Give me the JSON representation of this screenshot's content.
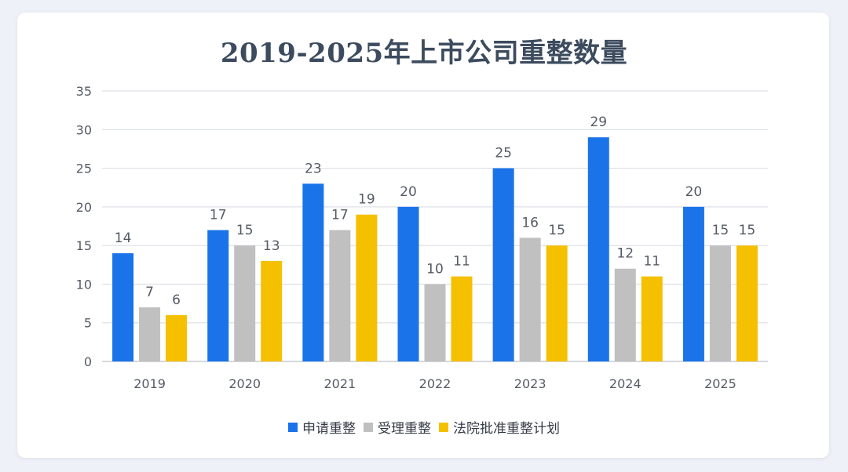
{
  "chart_data": {
    "type": "bar",
    "title": "2019-2025年上市公司重整数量",
    "categories": [
      "2019",
      "2020",
      "2021",
      "2022",
      "2023",
      "2024",
      "2025"
    ],
    "series": [
      {
        "name": "申请重整",
        "color": "#1a73e8",
        "values": [
          14,
          17,
          23,
          20,
          25,
          29,
          20
        ]
      },
      {
        "name": "受理重整",
        "color": "#c0c0c0",
        "values": [
          7,
          15,
          17,
          10,
          16,
          12,
          15
        ]
      },
      {
        "name": "法院批准重整计划",
        "color": "#f5c000",
        "values": [
          6,
          13,
          19,
          11,
          15,
          11,
          15
        ]
      }
    ],
    "ylim": [
      0,
      35
    ],
    "yticks": [
      0,
      5,
      10,
      15,
      20,
      25,
      30,
      35
    ],
    "grid": true,
    "legend_position": "bottom"
  }
}
